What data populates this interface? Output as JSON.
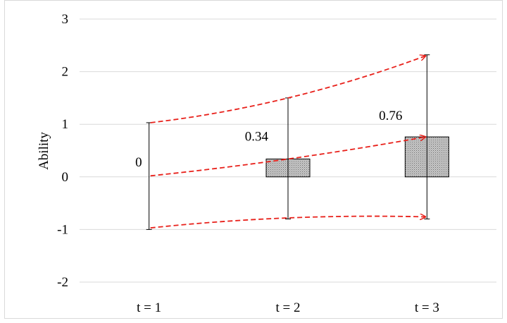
{
  "chart_data": {
    "type": "bar",
    "categories": [
      "t = 1",
      "t = 2",
      "t = 3"
    ],
    "values": [
      0,
      0.34,
      0.76
    ],
    "value_labels": [
      "0",
      "0.34",
      "0.76"
    ],
    "error_bars": [
      {
        "low": -1.0,
        "high": 1.03
      },
      {
        "low": -0.8,
        "high": 1.5
      },
      {
        "low": -0.8,
        "high": 2.32
      }
    ],
    "trajectories": [
      {
        "values": [
          1.03,
          1.5,
          2.3
        ]
      },
      {
        "values": [
          0.02,
          0.34,
          0.76
        ]
      },
      {
        "values": [
          -0.97,
          -0.78,
          -0.76
        ]
      }
    ],
    "title": "",
    "xlabel": "",
    "ylabel": "Ability",
    "ylim": [
      -2,
      3
    ],
    "yticks": [
      "-2",
      "-1",
      "0",
      "1",
      "2",
      "3"
    ],
    "grid": true,
    "legend": "none",
    "colors": {
      "bar_fill": "#b3b3b3",
      "bar_edge": "#000000",
      "gridline": "#d9d9d9",
      "trajectory": "#e8201a",
      "error_bar": "#000000"
    }
  }
}
